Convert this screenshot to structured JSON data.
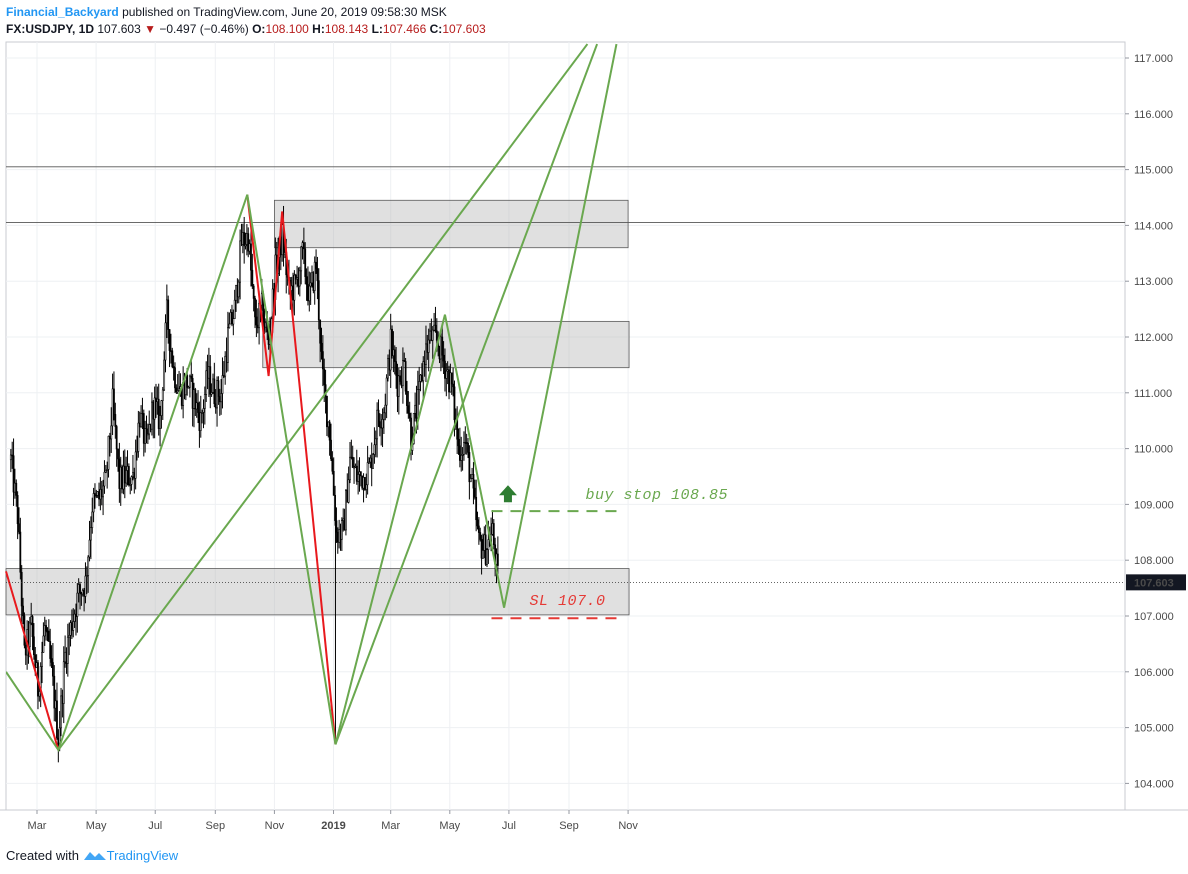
{
  "header": {
    "author": "Financial_Backyard",
    "published": "published on TradingView.com, June 20, 2019 09:58:30 MSK",
    "symbol": "FX:USDJPY, 1D",
    "price": "107.603",
    "change": "−0.497 (−0.46%)",
    "o_label": "O:",
    "o_value": "108.100",
    "h_label": "H:",
    "h_value": "108.143",
    "l_label": "L:",
    "l_value": "107.466",
    "c_label": "C:",
    "c_value": "107.603"
  },
  "footer": {
    "created_with": "Created with",
    "brand": "TradingView"
  },
  "chart_data": {
    "type": "candlestick",
    "instrument": "FX:USDJPY",
    "interval": "1D",
    "ylim": [
      103.5,
      117.3
    ],
    "yticks": [
      "104.000",
      "105.000",
      "106.000",
      "107.000",
      "108.000",
      "109.000",
      "110.000",
      "111.000",
      "112.000",
      "113.000",
      "114.000",
      "115.000",
      "116.000",
      "117.000"
    ],
    "xticks": [
      "Mar",
      "May",
      "Jul",
      "Sep",
      "Nov",
      "2019",
      "Mar",
      "May",
      "Jul",
      "Sep",
      "Nov"
    ],
    "last_price": "107.603",
    "price_path": [
      [
        "2018-02-02",
        109.8
      ],
      [
        "2018-02-09",
        108.8
      ],
      [
        "2018-02-16",
        106.3
      ],
      [
        "2018-02-23",
        106.8
      ],
      [
        "2018-03-02",
        105.7
      ],
      [
        "2018-03-09",
        106.8
      ],
      [
        "2018-03-16",
        106.0
      ],
      [
        "2018-03-23",
        104.8
      ],
      [
        "2018-03-30",
        106.3
      ],
      [
        "2018-04-06",
        106.9
      ],
      [
        "2018-04-13",
        107.4
      ],
      [
        "2018-04-20",
        107.6
      ],
      [
        "2018-04-27",
        109.0
      ],
      [
        "2018-05-04",
        109.1
      ],
      [
        "2018-05-11",
        109.4
      ],
      [
        "2018-05-18",
        110.8
      ],
      [
        "2018-05-25",
        109.4
      ],
      [
        "2018-06-01",
        109.5
      ],
      [
        "2018-06-08",
        109.5
      ],
      [
        "2018-06-15",
        110.6
      ],
      [
        "2018-06-22",
        110.0
      ],
      [
        "2018-06-29",
        110.8
      ],
      [
        "2018-07-06",
        110.5
      ],
      [
        "2018-07-13",
        112.4
      ],
      [
        "2018-07-20",
        111.4
      ],
      [
        "2018-07-27",
        111.0
      ],
      [
        "2018-08-03",
        111.2
      ],
      [
        "2018-08-10",
        110.9
      ],
      [
        "2018-08-17",
        110.5
      ],
      [
        "2018-08-24",
        111.3
      ],
      [
        "2018-08-31",
        111.0
      ],
      [
        "2018-09-07",
        111.0
      ],
      [
        "2018-09-14",
        112.0
      ],
      [
        "2018-09-21",
        112.5
      ],
      [
        "2018-09-28",
        113.7
      ],
      [
        "2018-10-05",
        113.8
      ],
      [
        "2018-10-12",
        112.2
      ],
      [
        "2018-10-19",
        112.5
      ],
      [
        "2018-10-26",
        111.9
      ],
      [
        "2018-11-02",
        113.2
      ],
      [
        "2018-11-09",
        113.8
      ],
      [
        "2018-11-16",
        112.8
      ],
      [
        "2018-11-23",
        112.9
      ],
      [
        "2018-11-30",
        113.5
      ],
      [
        "2018-12-07",
        112.7
      ],
      [
        "2018-12-14",
        113.3
      ],
      [
        "2018-12-21",
        111.2
      ],
      [
        "2018-12-28",
        110.3
      ],
      [
        "2019-01-04",
        108.5
      ],
      [
        "2019-01-11",
        108.5
      ],
      [
        "2019-01-18",
        109.8
      ],
      [
        "2019-01-25",
        109.5
      ],
      [
        "2019-02-01",
        109.5
      ],
      [
        "2019-02-08",
        109.7
      ],
      [
        "2019-02-15",
        110.5
      ],
      [
        "2019-02-22",
        110.7
      ],
      [
        "2019-03-01",
        111.9
      ],
      [
        "2019-03-08",
        111.2
      ],
      [
        "2019-03-15",
        111.5
      ],
      [
        "2019-03-22",
        110.2
      ],
      [
        "2019-03-29",
        110.8
      ],
      [
        "2019-04-05",
        111.7
      ],
      [
        "2019-04-12",
        112.0
      ],
      [
        "2019-04-19",
        111.9
      ],
      [
        "2019-04-26",
        111.5
      ],
      [
        "2019-05-03",
        111.1
      ],
      [
        "2019-05-10",
        110.0
      ],
      [
        "2019-05-17",
        110.1
      ],
      [
        "2019-05-24",
        109.3
      ],
      [
        "2019-05-31",
        108.3
      ],
      [
        "2019-06-07",
        108.2
      ],
      [
        "2019-06-14",
        108.5
      ],
      [
        "2019-06-20",
        107.6
      ]
    ],
    "horizontal_lines": [
      115.05,
      114.05
    ],
    "zones": [
      {
        "from": "2018-11-01",
        "to": "2019-11-01",
        "low": 113.6,
        "high": 114.45
      },
      {
        "from": "2018-10-20",
        "to": "2019-11-02",
        "low": 111.45,
        "high": 112.28
      },
      {
        "from": "2018-01-28",
        "to": "2019-11-02",
        "low": 107.02,
        "high": 107.85
      }
    ],
    "red_lines": [
      [
        [
          "2018-01-28",
          107.8
        ],
        [
          "2018-03-23",
          104.6
        ]
      ],
      [
        [
          "2018-10-04",
          114.55
        ],
        [
          "2018-10-26",
          111.3
        ],
        [
          "2018-11-09",
          114.25
        ],
        [
          "2019-01-03",
          104.7
        ]
      ]
    ],
    "green_lines": [
      [
        [
          "2018-01-28",
          106.0
        ],
        [
          "2018-03-23",
          104.6
        ],
        [
          "2018-10-04",
          114.55
        ],
        [
          "2019-01-03",
          104.7
        ],
        [
          "2019-04-26",
          112.4
        ],
        [
          "2019-06-26",
          107.15
        ],
        [
          "2019-10-20",
          117.25
        ]
      ],
      [
        [
          "2018-03-23",
          104.6
        ],
        [
          "2019-09-20",
          117.25
        ]
      ],
      [
        [
          "2019-01-03",
          104.7
        ],
        [
          "2019-09-30",
          117.25
        ]
      ]
    ],
    "arrow": {
      "date": "2019-06-30",
      "price": 109.2,
      "color": "#2e7d32"
    },
    "annotations": [
      {
        "text": "buy stop 108.85",
        "price": 108.88,
        "from": "2019-06-13",
        "to": "2019-10-20",
        "color": "#6aa84f"
      },
      {
        "text": "SL 107.0",
        "price": 106.96,
        "from": "2019-06-13",
        "to": "2019-10-20",
        "color": "#e53935"
      }
    ]
  }
}
